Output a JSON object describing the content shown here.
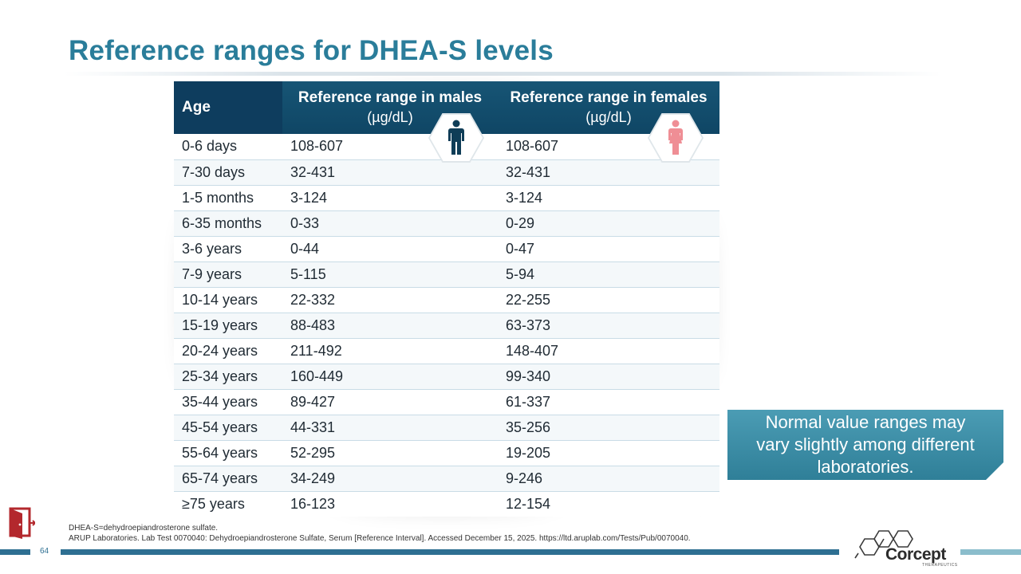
{
  "slide": {
    "title": "Reference ranges for DHEA-S levels",
    "page_number": "64"
  },
  "table": {
    "headers": {
      "age": "Age",
      "males": "Reference range in males",
      "males_unit": "(µg/dL)",
      "females": "Reference range in females",
      "females_unit": "(µg/dL)"
    },
    "rows": [
      {
        "age": "0-6 days",
        "males": "108-607",
        "females": "108-607"
      },
      {
        "age": "7-30 days",
        "males": "32-431",
        "females": "32-431"
      },
      {
        "age": "1-5 months",
        "males": "3-124",
        "females": "3-124"
      },
      {
        "age": "6-35 months",
        "males": "0-33",
        "females": "0-29"
      },
      {
        "age": "3-6 years",
        "males": "0-44",
        "females": "0-47"
      },
      {
        "age": "7-9 years",
        "males": "5-115",
        "females": "5-94"
      },
      {
        "age": "10-14 years",
        "males": "22-332",
        "females": "22-255"
      },
      {
        "age": "15-19 years",
        "males": "88-483",
        "females": "63-373"
      },
      {
        "age": "20-24 years",
        "males": "211-492",
        "females": "148-407"
      },
      {
        "age": "25-34 years",
        "males": "160-449",
        "females": "99-340"
      },
      {
        "age": "35-44 years",
        "males": "89-427",
        "females": "61-337"
      },
      {
        "age": "45-54 years",
        "males": "44-331",
        "females": "35-256"
      },
      {
        "age": "55-64 years",
        "males": "52-295",
        "females": "19-205"
      },
      {
        "age": "65-74 years",
        "males": "34-249",
        "females": "9-246"
      },
      {
        "age": "≥75 years",
        "males": "16-123",
        "females": "12-154"
      }
    ]
  },
  "icons": {
    "male": "male-person-icon",
    "female": "female-person-icon",
    "exit": "exit-door-icon"
  },
  "callout": {
    "line1": "Normal value ranges may",
    "line2": "vary slightly among different",
    "line3": "laboratories."
  },
  "footnotes": {
    "abbreviation": "DHEA-S=dehydroepiandrosterone sulfate.",
    "reference": "ARUP Laboratories. Lab Test 0070040: Dehydroepiandrosterone Sulfate, Serum [Reference Interval]. Accessed December 15, 2025. https://ltd.aruplab.com/Tests/Pub/0070040."
  },
  "logo": {
    "name": "Corcept",
    "subtitle": "THERAPEUTICS"
  },
  "colors": {
    "title": "#2a7d9a",
    "header_dark": "#0e3d5e",
    "header": "#175575",
    "male_icon": "#0f3d57",
    "female_icon": "#ef8e95",
    "callout": "#3b8ca6",
    "exit_icon": "#b3282d",
    "accent_bar": "#2e6f92"
  }
}
